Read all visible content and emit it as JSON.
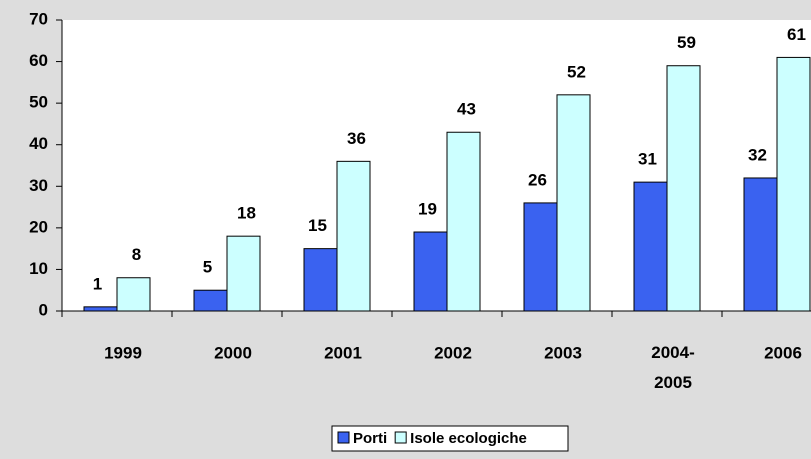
{
  "chart_data": {
    "type": "bar",
    "categories": [
      "1999",
      "2000",
      "2001",
      "2002",
      "2003",
      "2004-2005",
      "2006"
    ],
    "series": [
      {
        "name": "Porti",
        "color": "#3a62f0",
        "values": [
          1,
          5,
          15,
          19,
          26,
          31,
          32
        ]
      },
      {
        "name": "Isole ecologiche",
        "color": "#ccffff",
        "values": [
          8,
          18,
          36,
          43,
          52,
          59,
          61
        ]
      }
    ],
    "ylim": [
      0,
      70
    ],
    "yticks": [
      0,
      10,
      20,
      30,
      40,
      50,
      60,
      70
    ],
    "grid": false,
    "legend": "bottom"
  }
}
